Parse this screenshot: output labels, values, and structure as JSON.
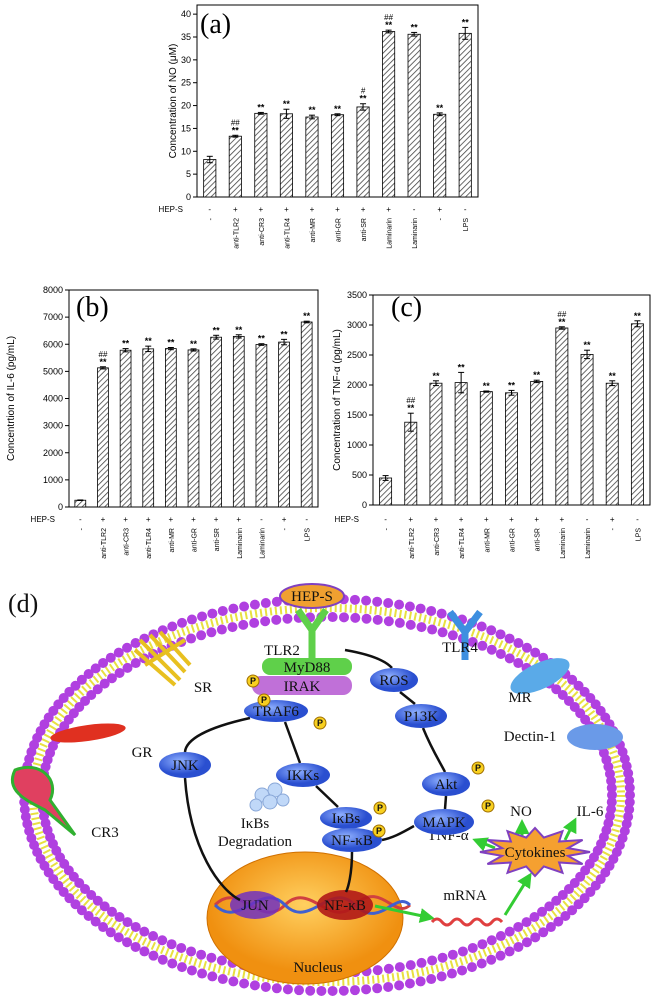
{
  "chart_data": [
    {
      "type": "bar",
      "panel_label": "(a)",
      "ylabel": "Concentration of NO (μM)",
      "row_label": "HEP-S",
      "hep_s": [
        "-",
        "+",
        "+",
        "+",
        "+",
        "+",
        "+",
        "+",
        "-",
        "+",
        "-"
      ],
      "categories": [
        "-",
        "anti-TLR2",
        "anti-CR3",
        "anti-TLR4",
        "anti-MR",
        "anti-GR",
        "anti-SR",
        "Laminarin",
        "Laminarin",
        "-",
        "LPS"
      ],
      "values": [
        8.2,
        13.3,
        18.3,
        18.2,
        17.5,
        18.0,
        19.7,
        36.2,
        35.6,
        18.1,
        35.8
      ],
      "errors": [
        0.7,
        0.2,
        0.2,
        1.0,
        0.4,
        0.2,
        0.7,
        0.3,
        0.4,
        0.3,
        1.3
      ],
      "sig": [
        null,
        "**",
        "**",
        "**",
        "**",
        "**",
        "**",
        "**",
        "**",
        "**",
        "**"
      ],
      "sig_top": [
        null,
        "##",
        null,
        null,
        null,
        null,
        "#",
        "##",
        null,
        null,
        null
      ],
      "color": "#444444",
      "ylim": [
        0,
        42
      ],
      "yticks": [
        0,
        5,
        10,
        15,
        20,
        25,
        30,
        35,
        40
      ]
    },
    {
      "type": "bar",
      "panel_label": "(b)",
      "ylabel": "Concentrtion of IL-6 (pg/mL)",
      "row_label": "HEP-S",
      "hep_s": [
        "-",
        "+",
        "+",
        "+",
        "+",
        "+",
        "+",
        "+",
        "-",
        "+",
        "-"
      ],
      "categories": [
        "-",
        "anti-TLR2",
        "anti-CR3",
        "anti-TLR4",
        "anti-MR",
        "anti-GR",
        "anti-SR",
        "Laminarin",
        "Laminarin",
        "-",
        "LPS"
      ],
      "values": [
        250,
        5130,
        5780,
        5830,
        5840,
        5790,
        6260,
        6290,
        5990,
        6080,
        6820
      ],
      "errors": [
        10,
        40,
        60,
        100,
        40,
        40,
        70,
        60,
        30,
        100,
        30
      ],
      "sig": [
        null,
        "**",
        "**",
        "**",
        "**",
        "**",
        "**",
        "**",
        "**",
        "**",
        "**"
      ],
      "sig_top": [
        null,
        "##",
        null,
        null,
        null,
        null,
        null,
        null,
        null,
        null,
        null
      ],
      "color": "#444444",
      "ylim": [
        0,
        8000
      ],
      "yticks": [
        0,
        1000,
        2000,
        3000,
        4000,
        5000,
        6000,
        7000,
        8000
      ]
    },
    {
      "type": "bar",
      "panel_label": "(c)",
      "ylabel": "Concentration of TNF-α (pg/mL)",
      "row_label": "HEP-S",
      "hep_s": [
        "-",
        "+",
        "+",
        "+",
        "+",
        "+",
        "+",
        "+",
        "-",
        "+",
        "-"
      ],
      "categories": [
        "-",
        "anti-TLR2",
        "anti-CR3",
        "anti-TLR4",
        "anti-MR",
        "anti-GR",
        "anti-SR",
        "Laminarin",
        "Laminarin",
        "-",
        "LPS"
      ],
      "values": [
        450,
        1380,
        2030,
        2040,
        1890,
        1870,
        2060,
        2950,
        2510,
        2030,
        3020
      ],
      "errors": [
        40,
        150,
        40,
        170,
        10,
        40,
        20,
        20,
        70,
        40,
        50
      ],
      "sig": [
        null,
        "**",
        "**",
        "**",
        "**",
        "**",
        "**",
        "**",
        "**",
        "**",
        "**"
      ],
      "sig_top": [
        null,
        "##",
        null,
        null,
        null,
        null,
        null,
        "##",
        null,
        null,
        null
      ],
      "color": "#444444",
      "ylim": [
        0,
        3500
      ],
      "yticks": [
        0,
        500,
        1000,
        1500,
        2000,
        2500,
        3000,
        3500
      ]
    }
  ],
  "diagram": {
    "label": "(d)",
    "ligand": "HEP-S",
    "receptors": [
      "TLR2",
      "SR",
      "GR",
      "CR3",
      "TLR4",
      "MR",
      "Dectin-1"
    ],
    "nodes": [
      "MyD88",
      "IRAK",
      "TRAF6",
      "ROS",
      "P13K",
      "Akt",
      "MAPK",
      "JNK",
      "IKKs",
      "IκBs",
      "NF-κB"
    ],
    "degradation": [
      "IκBs",
      "Degradation"
    ],
    "phospho": "P",
    "nucleus": {
      "label": "Nucleus",
      "genes": [
        "JUN",
        "NF-κB"
      ]
    },
    "mrna": "mRNA",
    "cytokines": "Cytokines",
    "outputs": [
      "NO",
      "IL-6",
      "TNF-α"
    ]
  }
}
